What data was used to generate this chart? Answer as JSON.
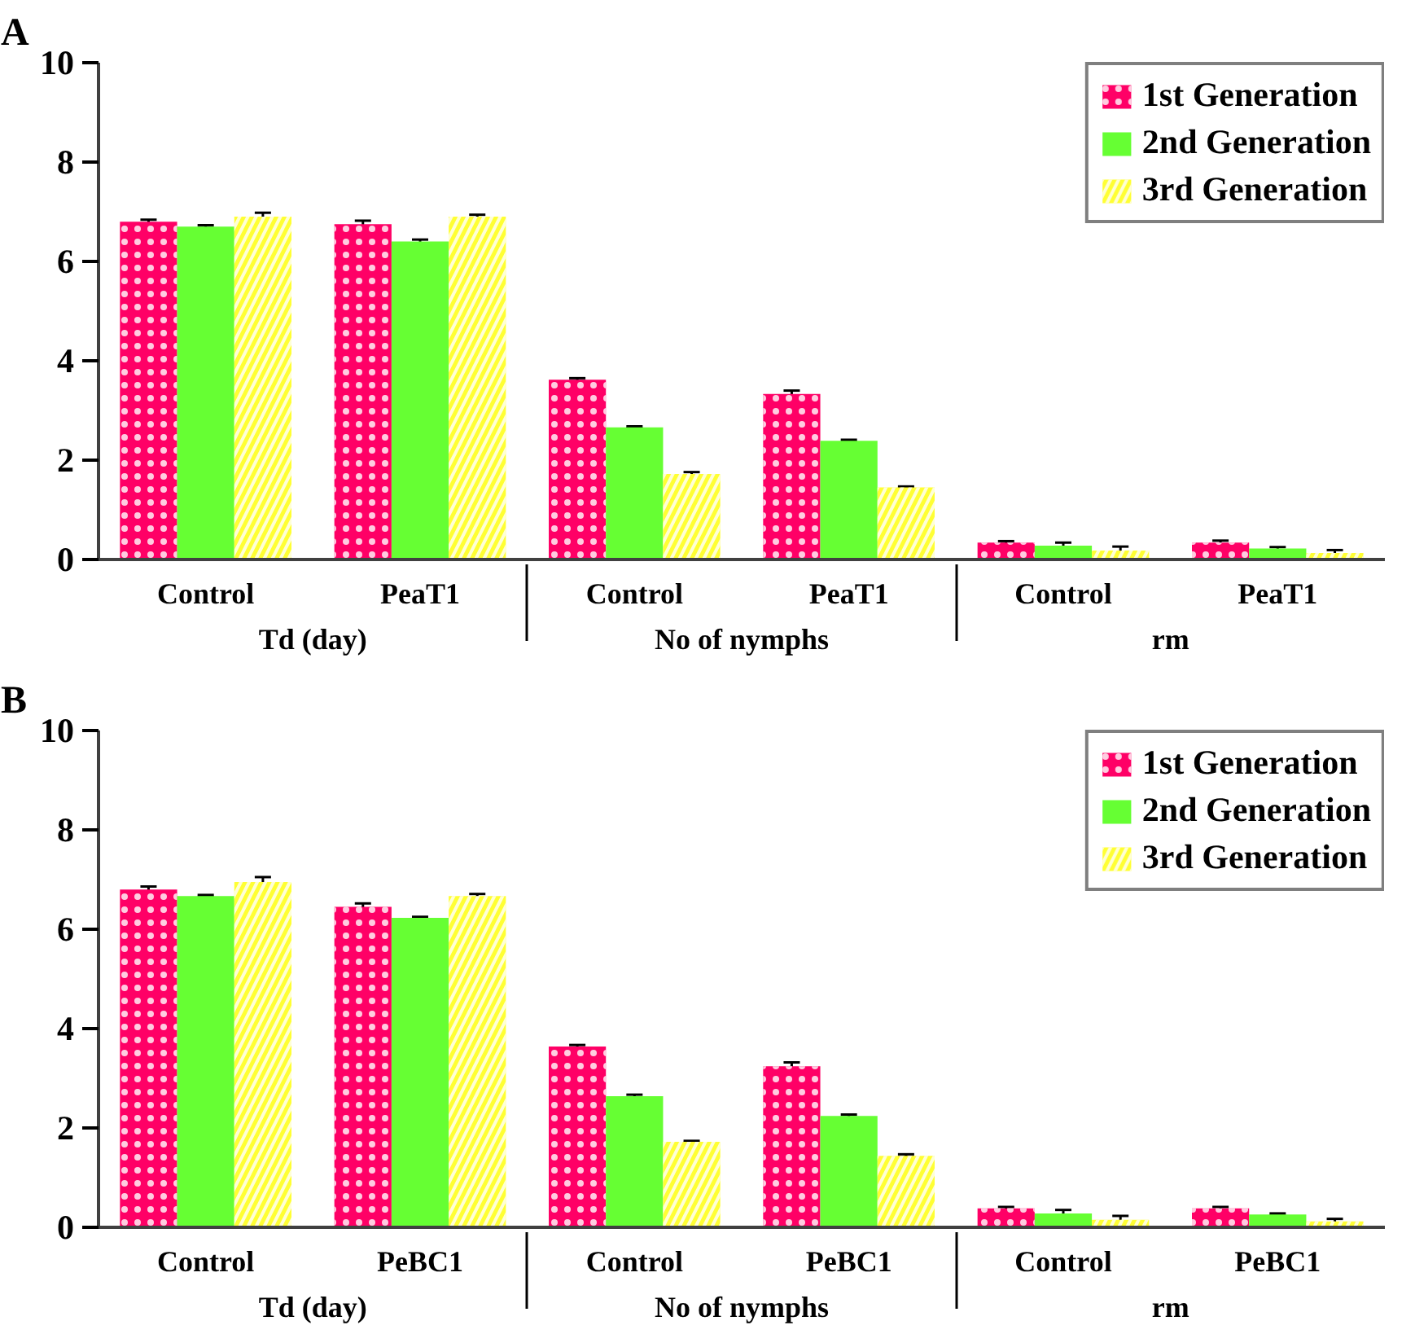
{
  "chart_data": [
    {
      "type": "bar",
      "title": "A",
      "categories": [
        "Control",
        "PeaT1",
        "Control",
        "PeaT1",
        "Control",
        "PeaT1"
      ],
      "annotations": [
        "Td (day)",
        "No of nymphs",
        "rm"
      ],
      "ylim": [
        0,
        10
      ],
      "yticks": [
        0,
        2,
        4,
        6,
        8,
        10
      ],
      "grid": false,
      "legend": "top right",
      "series": [
        {
          "name": "1st Generation",
          "color": "#ff0066",
          "values": [
            6.8,
            6.75,
            3.62,
            3.33,
            0.34,
            0.34
          ],
          "errors": [
            0.04,
            0.07,
            0.03,
            0.07,
            0.03,
            0.04
          ]
        },
        {
          "name": "2nd Generation",
          "color": "#66ff33",
          "values": [
            6.7,
            6.4,
            2.66,
            2.39,
            0.28,
            0.22
          ],
          "errors": [
            0.03,
            0.04,
            0.02,
            0.02,
            0.06,
            0.03
          ]
        },
        {
          "name": "3rd Generation",
          "color": "#ffff33",
          "values": [
            6.9,
            6.9,
            1.72,
            1.45,
            0.18,
            0.13
          ],
          "errors": [
            0.08,
            0.04,
            0.04,
            0.02,
            0.08,
            0.06
          ]
        }
      ]
    },
    {
      "type": "bar",
      "title": "B",
      "categories": [
        "Control",
        "PeBC1",
        "Control",
        "PeBC1",
        "Control",
        "PeBC1"
      ],
      "annotations": [
        "Td (day)",
        "No of nymphs",
        "rm"
      ],
      "ylim": [
        0,
        10
      ],
      "yticks": [
        0,
        2,
        4,
        6,
        8,
        10
      ],
      "grid": false,
      "legend": "top right",
      "series": [
        {
          "name": "1st Generation",
          "color": "#ff0066",
          "values": [
            6.8,
            6.45,
            3.64,
            3.24,
            0.38,
            0.38
          ],
          "errors": [
            0.06,
            0.07,
            0.03,
            0.08,
            0.03,
            0.03
          ]
        },
        {
          "name": "2nd Generation",
          "color": "#66ff33",
          "values": [
            6.67,
            6.23,
            2.64,
            2.24,
            0.28,
            0.26
          ],
          "errors": [
            0.02,
            0.02,
            0.03,
            0.03,
            0.07,
            0.02
          ]
        },
        {
          "name": "3rd Generation",
          "color": "#ffff33",
          "values": [
            6.95,
            6.67,
            1.72,
            1.44,
            0.15,
            0.12
          ],
          "errors": [
            0.1,
            0.04,
            0.02,
            0.03,
            0.08,
            0.05
          ]
        }
      ]
    }
  ]
}
